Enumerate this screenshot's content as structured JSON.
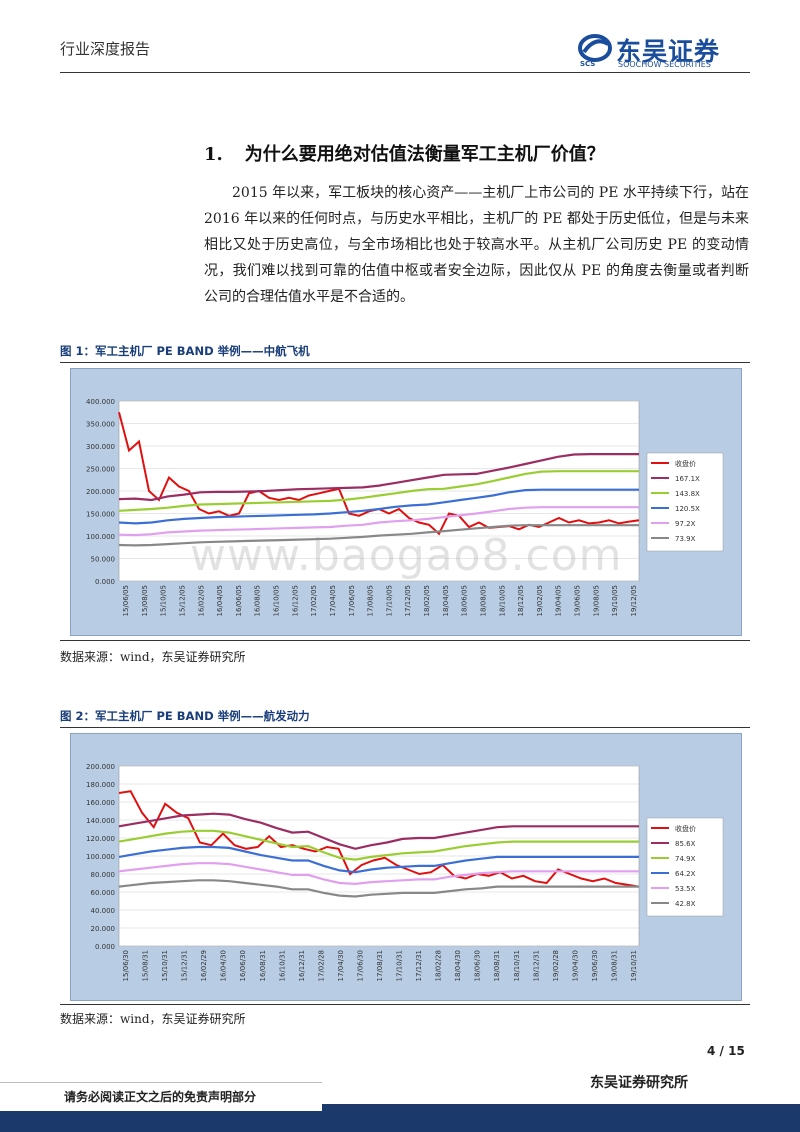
{
  "header": {
    "left": "行业深度报告",
    "logo_cn": "东吴证券",
    "logo_en": "SOOCHOW SECURITIES",
    "logo_scs": "SCS"
  },
  "section": {
    "number": "1.",
    "title": "为什么要用绝对估值法衡量军工主机厂价值？"
  },
  "paragraph": "2015 年以来，军工板块的核心资产——主机厂上市公司的 PE 水平持续下行，站在 2016 年以来的任何时点，与历史水平相比，主机厂的 PE 都处于历史低位，但是与未来相比又处于历史高位，与全市场相比也处于较高水平。从主机厂公司历史 PE 的变动情况，我们难以找到可靠的估值中枢或者安全边际，因此仅从 PE 的角度去衡量或者判断公司的合理估值水平是不合适的。",
  "watermark": "www.baogao8.com",
  "figures": [
    {
      "caption": "图 1：军工主机厂 PE BAND 举例——中航飞机",
      "source": "数据来源：wind，东吴证券研究所"
    },
    {
      "caption": "图 2：军工主机厂 PE BAND 举例——航发动力",
      "source": "数据来源：wind，东吴证券研究所"
    }
  ],
  "chart_data": [
    {
      "type": "line",
      "ylim": [
        0,
        400
      ],
      "yticks": [
        "0.000",
        "50.000",
        "100.000",
        "150.000",
        "200.000",
        "250.000",
        "300.000",
        "350.000",
        "400.000"
      ],
      "xticks": [
        "15/06/05",
        "15/08/05",
        "15/10/05",
        "15/12/05",
        "16/02/05",
        "16/04/05",
        "16/06/05",
        "16/08/05",
        "16/10/05",
        "16/12/05",
        "17/02/05",
        "17/04/05",
        "17/06/05",
        "17/08/05",
        "17/10/05",
        "17/12/05",
        "18/02/05",
        "18/04/05",
        "18/06/05",
        "18/08/05",
        "18/10/05",
        "18/12/05",
        "19/02/05",
        "19/04/05",
        "19/06/05",
        "19/08/05",
        "19/10/05",
        "19/12/05"
      ],
      "legend_position": "right",
      "series": [
        {
          "name": "收盘价",
          "color": "#e01010",
          "values": [
            375,
            290,
            310,
            200,
            180,
            230,
            210,
            200,
            160,
            150,
            155,
            145,
            150,
            195,
            200,
            185,
            180,
            185,
            180,
            190,
            195,
            200,
            205,
            150,
            145,
            155,
            160,
            150,
            160,
            140,
            130,
            125,
            105,
            150,
            145,
            120,
            130,
            118,
            120,
            122,
            115,
            125,
            120,
            130,
            140,
            130,
            135,
            128,
            130,
            135,
            128,
            132,
            135
          ]
        },
        {
          "name": "167.1X",
          "color": "#9b2d62",
          "values": [
            182,
            183,
            180,
            188,
            192,
            197,
            198,
            198,
            199,
            200,
            202,
            204,
            205,
            206,
            207,
            208,
            212,
            218,
            224,
            230,
            236,
            237,
            238,
            245,
            252,
            260,
            268,
            276,
            281,
            282,
            282,
            282,
            282
          ]
        },
        {
          "name": "143.8X",
          "color": "#9acd32",
          "values": [
            156,
            158,
            160,
            163,
            167,
            170,
            171,
            172,
            173,
            174,
            175,
            176,
            177,
            178,
            181,
            185,
            190,
            195,
            200,
            204,
            205,
            210,
            215,
            222,
            230,
            238,
            243,
            244,
            244,
            244,
            244,
            244,
            244
          ]
        },
        {
          "name": "120.5X",
          "color": "#3c6fd6",
          "values": [
            130,
            128,
            130,
            135,
            138,
            140,
            142,
            143,
            144,
            145,
            146,
            147,
            148,
            150,
            153,
            156,
            160,
            165,
            168,
            170,
            175,
            180,
            185,
            190,
            197,
            202,
            203,
            203,
            203,
            203,
            203,
            203,
            203
          ]
        },
        {
          "name": "97.2X",
          "color": "#e0a0ee",
          "values": [
            103,
            102,
            104,
            108,
            110,
            112,
            113,
            114,
            115,
            116,
            117,
            118,
            119,
            120,
            123,
            125,
            130,
            133,
            135,
            138,
            142,
            146,
            150,
            155,
            160,
            163,
            164,
            164,
            164,
            164,
            164,
            164,
            164
          ]
        },
        {
          "name": "73.9X",
          "color": "#888888",
          "values": [
            80,
            79,
            80,
            82,
            84,
            86,
            87,
            88,
            89,
            90,
            91,
            92,
            93,
            94,
            96,
            98,
            101,
            103,
            105,
            108,
            111,
            114,
            117,
            120,
            123,
            124,
            124,
            124,
            124,
            124,
            124,
            124,
            124
          ]
        }
      ]
    },
    {
      "type": "line",
      "ylim": [
        0,
        200
      ],
      "yticks": [
        "0.000",
        "20.000",
        "40.000",
        "60.000",
        "80.000",
        "100.000",
        "120.000",
        "140.000",
        "160.000",
        "180.000",
        "200.000"
      ],
      "xticks": [
        "15/06/30",
        "15/08/31",
        "15/10/31",
        "15/12/31",
        "16/02/29",
        "16/04/30",
        "16/06/30",
        "16/08/31",
        "16/10/31",
        "16/12/31",
        "17/02/28",
        "17/04/30",
        "17/06/30",
        "17/08/31",
        "17/10/31",
        "17/12/31",
        "18/02/28",
        "18/04/30",
        "18/06/30",
        "18/08/31",
        "18/10/31",
        "18/12/31",
        "19/02/28",
        "19/04/30",
        "19/06/30",
        "19/08/31",
        "19/10/31"
      ],
      "legend_position": "right",
      "series": [
        {
          "name": "收盘价",
          "color": "#e01010",
          "values": [
            170,
            172,
            148,
            132,
            158,
            148,
            142,
            115,
            112,
            125,
            112,
            108,
            110,
            122,
            110,
            112,
            108,
            105,
            110,
            108,
            80,
            90,
            95,
            98,
            90,
            85,
            80,
            82,
            90,
            78,
            75,
            80,
            78,
            82,
            75,
            78,
            72,
            70,
            85,
            80,
            75,
            72,
            75,
            70,
            68,
            66
          ]
        },
        {
          "name": "85.6X",
          "color": "#9b2d62",
          "values": [
            133,
            136,
            139,
            142,
            145,
            146,
            147,
            146,
            141,
            137,
            131,
            126,
            127,
            120,
            113,
            108,
            112,
            115,
            119,
            120,
            120,
            123,
            126,
            129,
            132,
            133,
            133,
            133,
            133,
            133,
            133,
            133,
            133,
            133
          ]
        },
        {
          "name": "74.9X",
          "color": "#9acd32",
          "values": [
            116,
            119,
            122,
            125,
            127,
            128,
            128,
            126,
            122,
            118,
            114,
            110,
            111,
            104,
            98,
            96,
            99,
            101,
            103,
            104,
            105,
            108,
            111,
            113,
            115,
            116,
            116,
            116,
            116,
            116,
            116,
            116,
            116,
            116
          ]
        },
        {
          "name": "64.2X",
          "color": "#3c6fd6",
          "values": [
            99,
            102,
            105,
            107,
            109,
            110,
            110,
            109,
            105,
            101,
            98,
            95,
            95,
            89,
            84,
            82,
            85,
            87,
            88,
            89,
            89,
            92,
            95,
            97,
            99,
            99,
            99,
            99,
            99,
            99,
            99,
            99,
            99,
            99
          ]
        },
        {
          "name": "53.5X",
          "color": "#e0a0ee",
          "values": [
            83,
            85,
            87,
            89,
            91,
            92,
            92,
            91,
            88,
            85,
            82,
            79,
            79,
            74,
            70,
            69,
            71,
            72,
            73,
            74,
            74,
            77,
            79,
            81,
            82,
            83,
            83,
            83,
            83,
            83,
            83,
            83,
            83,
            83
          ]
        },
        {
          "name": "42.8X",
          "color": "#888888",
          "values": [
            66,
            68,
            70,
            71,
            72,
            73,
            73,
            72,
            70,
            68,
            66,
            63,
            63,
            59,
            56,
            55,
            57,
            58,
            59,
            59,
            59,
            61,
            63,
            64,
            66,
            66,
            66,
            66,
            66,
            66,
            66,
            66,
            66,
            66
          ]
        }
      ]
    }
  ],
  "footer": {
    "page": "4 / 15",
    "org": "东吴证券研究所",
    "note": "请务必阅读正文之后的免责声明部分"
  }
}
